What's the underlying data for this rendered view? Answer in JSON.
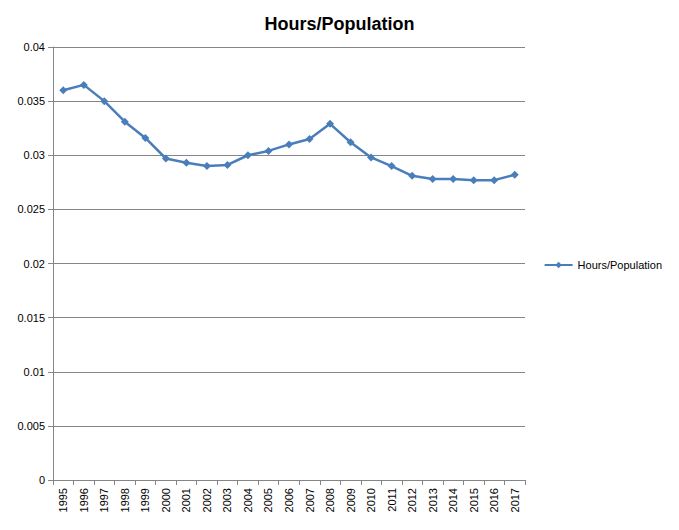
{
  "chart_data": {
    "type": "line",
    "title": "Hours/Population",
    "categories": [
      "1995",
      "1996",
      "1997",
      "1998",
      "1999",
      "2000",
      "2001",
      "2002",
      "2003",
      "2004",
      "2005",
      "2006",
      "2007",
      "2008",
      "2009",
      "2010",
      "2011",
      "2012",
      "2013",
      "2014",
      "2015",
      "2016",
      "2017"
    ],
    "series": [
      {
        "name": "Hours/Population",
        "color": "#4a7ebb",
        "marker": "diamond",
        "values": [
          0.036,
          0.0365,
          0.035,
          0.0331,
          0.0316,
          0.0297,
          0.0293,
          0.029,
          0.0291,
          0.03,
          0.0304,
          0.031,
          0.0315,
          0.0329,
          0.0312,
          0.0298,
          0.029,
          0.0281,
          0.0278,
          0.0278,
          0.0277,
          0.0277,
          0.0282
        ]
      }
    ],
    "ylim": [
      0,
      0.04
    ],
    "yticks": [
      0,
      0.005,
      0.01,
      0.015,
      0.02,
      0.025,
      0.03,
      0.035,
      0.04
    ],
    "grid": true,
    "legend": "right"
  }
}
